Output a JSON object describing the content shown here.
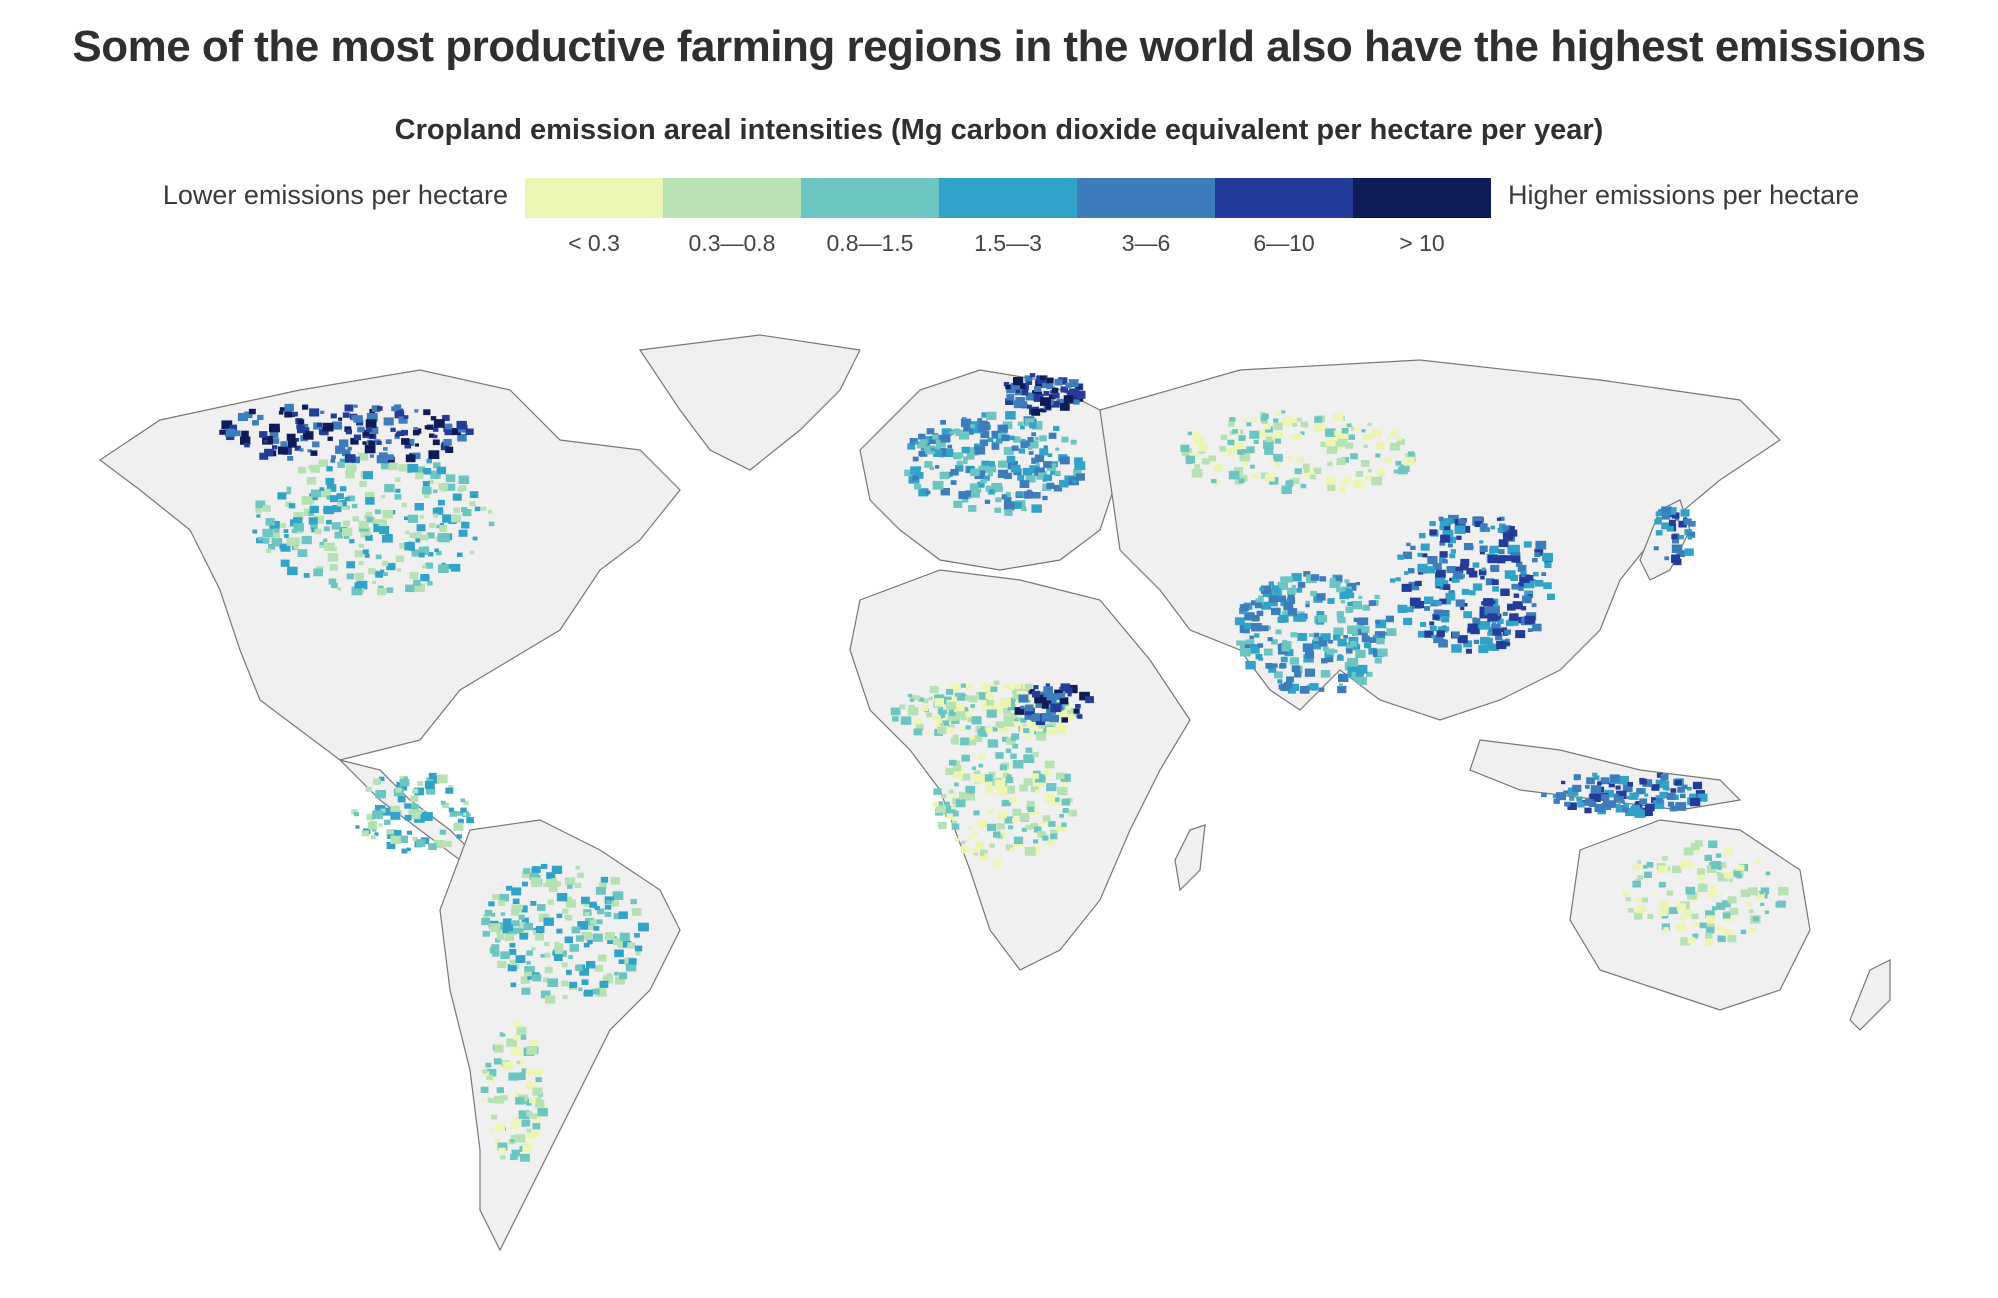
{
  "title": "Some of the most productive farming regions in the world also have the highest emissions",
  "subtitle": "Cropland emission areal intensities (Mg carbon dioxide equivalent per hectare per year)",
  "legend": {
    "low_label": "Lower emissions per hectare",
    "high_label": "Higher emissions per hectare",
    "bins": [
      {
        "label": "< 0.3",
        "color": "#edf5b5"
      },
      {
        "label": "0.3—0.8",
        "color": "#b5e1b3"
      },
      {
        "label": "0.8—1.5",
        "color": "#6cc5c0"
      },
      {
        "label": "1.5—3",
        "color": "#31a2c8"
      },
      {
        "label": "3—6",
        "color": "#3d7dbb"
      },
      {
        "label": "6—10",
        "color": "#243c99"
      },
      {
        "label": "> 10",
        "color": "#0f1b57"
      }
    ]
  },
  "map": {
    "no_data_color": "#f0f0f0",
    "border_color": "#777777"
  }
}
